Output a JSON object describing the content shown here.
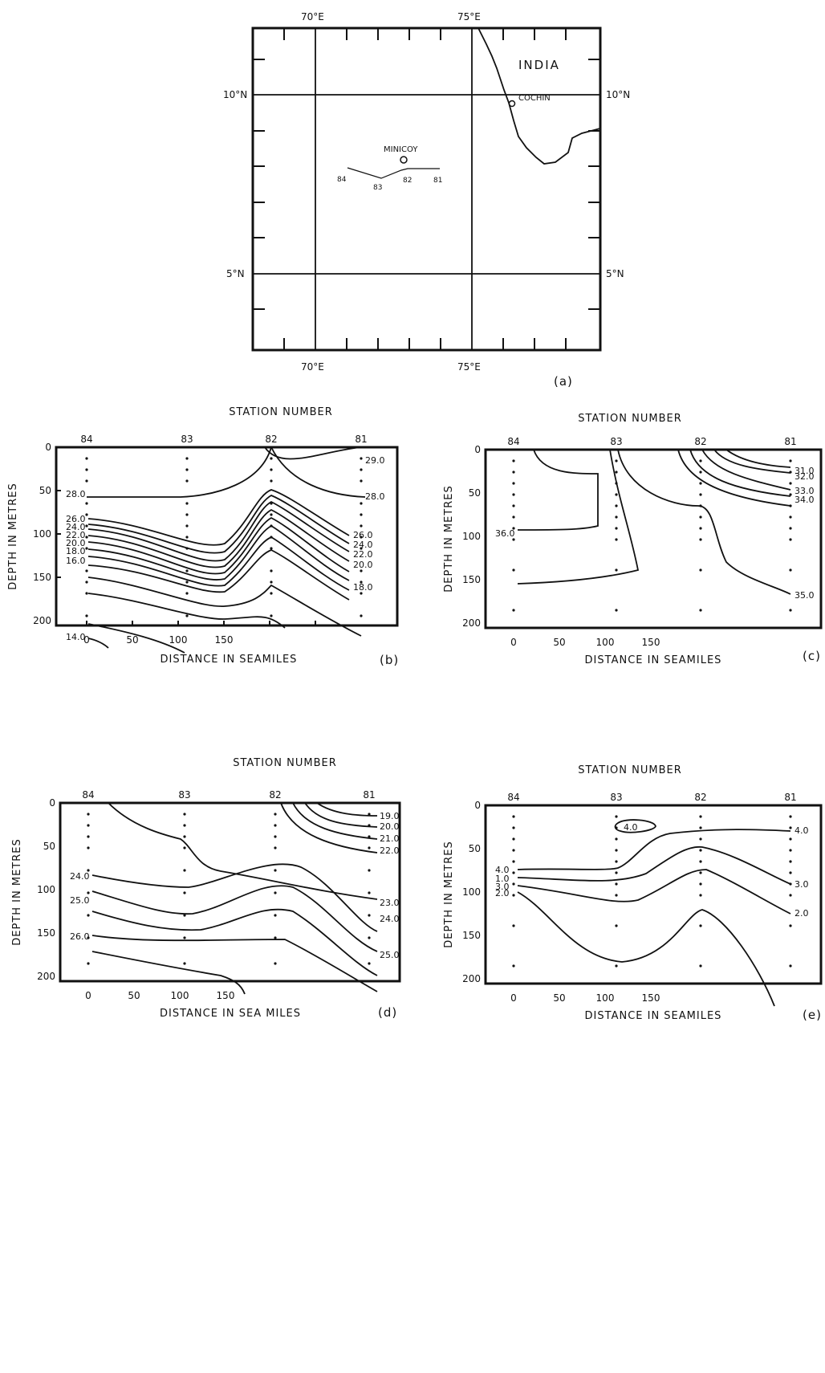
{
  "map": {
    "lon_labels": [
      "70°E",
      "75°E"
    ],
    "lat_labels": [
      "10°N",
      "5°N"
    ],
    "country": "INDIA",
    "port": "COCHIN",
    "island": "MINICOY",
    "stations": [
      "84",
      "83",
      "82",
      "81"
    ],
    "panel": "(a)"
  },
  "panels": {
    "b": {
      "panel": "(b)",
      "top_title": "STATION NUMBER",
      "xlabel": "DISTANCE IN SEAMILES",
      "ylabel": "DEPTH IN METRES",
      "stations": [
        "84",
        "83",
        "82",
        "81"
      ],
      "xticks": [
        "0",
        "50",
        "100",
        "150"
      ],
      "yticks": [
        "0",
        "50",
        "100",
        "150",
        "200"
      ],
      "contour_labels": [
        "29.0",
        "28.0",
        "28.0",
        "26.0",
        "24.0",
        "22.0",
        "20.0",
        "18.0",
        "16.0",
        "14.0",
        "26.0",
        "24.0",
        "22.0",
        "20.0",
        "18.0"
      ]
    },
    "c": {
      "panel": "(c)",
      "top_title": "STATION NUMBER",
      "xlabel": "DISTANCE IN SEAMILES",
      "ylabel": "DEPTH IN METRES",
      "stations": [
        "84",
        "83",
        "82",
        "81"
      ],
      "xticks": [
        "0",
        "50",
        "100",
        "150"
      ],
      "yticks": [
        "0",
        "50",
        "100",
        "150",
        "200"
      ],
      "contour_labels": [
        "31.0",
        "32.0",
        "33.0",
        "34.0",
        "36.0",
        "35.0"
      ]
    },
    "d": {
      "panel": "(d)",
      "top_title": "STATION NUMBER",
      "xlabel": "DISTANCE IN SEA MILES",
      "ylabel": "DEPTH IN METRES",
      "stations": [
        "84",
        "83",
        "82",
        "81"
      ],
      "xticks": [
        "0",
        "50",
        "100",
        "150"
      ],
      "yticks": [
        "0",
        "50",
        "100",
        "150",
        "200"
      ],
      "contour_labels": [
        "19.0",
        "20.0",
        "21.0",
        "22.0",
        "24.0",
        "23.0",
        "25.0",
        "24.0",
        "26.0",
        "25.0"
      ]
    },
    "e": {
      "panel": "(e)",
      "top_title": "STATION NUMBER",
      "xlabel": "DISTANCE IN SEAMILES",
      "ylabel": "DEPTH IN METRES",
      "stations": [
        "84",
        "83",
        "82",
        "81"
      ],
      "xticks": [
        "0",
        "50",
        "100",
        "150"
      ],
      "yticks": [
        "0",
        "50",
        "100",
        "150",
        "200"
      ],
      "contour_labels": [
        "4.0",
        "4.0",
        "4.0",
        "3.0",
        "2.0",
        "1.0",
        "3.0",
        "2.0"
      ]
    }
  }
}
